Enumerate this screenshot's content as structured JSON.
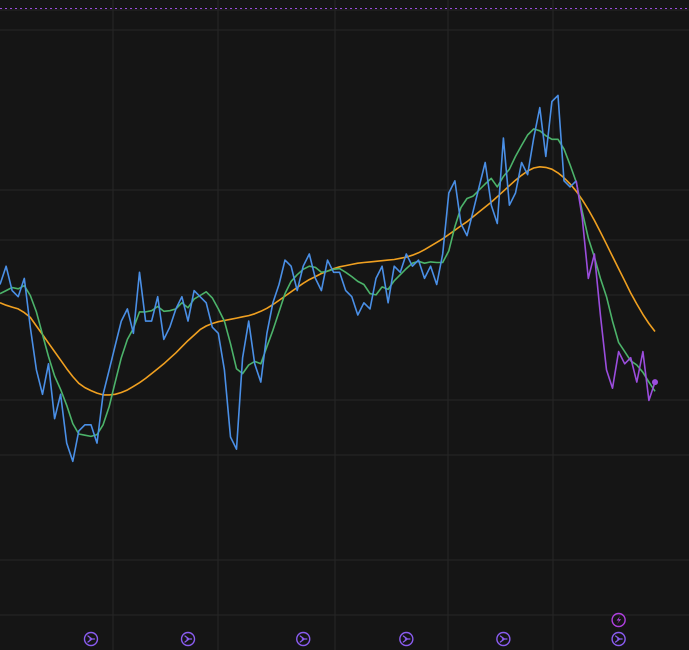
{
  "chart_data": {
    "type": "line",
    "grid": true,
    "legend": "none",
    "title": "",
    "xlabel": "",
    "ylabel": "",
    "xlim": [
      0,
      108
    ],
    "ylim": [
      0,
      100
    ],
    "colors": {
      "background": "#151515",
      "grid": "#262626",
      "price_blue": "#4a8fe6",
      "price_purple": "#9b4ddd",
      "fast_ma": "#4cb36a",
      "slow_ma": "#f0a020",
      "marker": "#8a5cf0",
      "marker_alert": "#b040e0"
    },
    "series": [
      {
        "role": "price",
        "x": [
          0,
          1,
          2,
          3,
          4,
          5,
          6,
          7,
          8,
          9,
          10,
          11,
          12,
          13,
          14,
          15,
          16,
          17,
          18,
          19,
          20,
          21,
          22,
          23,
          24,
          25,
          26,
          27,
          28,
          29,
          30,
          31,
          32,
          33,
          34,
          35,
          36,
          37,
          38,
          39,
          40,
          41,
          42,
          43,
          44,
          45,
          46,
          47,
          48,
          49,
          50,
          51,
          52,
          53,
          54,
          55,
          56,
          57,
          58,
          59,
          60,
          61,
          62,
          63,
          64,
          65,
          66,
          67,
          68,
          69,
          70,
          71,
          72,
          73,
          74,
          75,
          76,
          77,
          78,
          79,
          80,
          81,
          82,
          83,
          84,
          85,
          86,
          87,
          88,
          89,
          90,
          91,
          92,
          93,
          94,
          95,
          96,
          97,
          98,
          99,
          100,
          101,
          102,
          103,
          104,
          105,
          106,
          107,
          108
        ],
        "values": [
          55,
          58,
          54,
          53,
          56,
          48,
          41,
          37,
          42,
          33,
          37,
          29,
          26,
          31,
          32,
          32,
          29,
          37,
          41,
          45,
          49,
          51,
          47,
          57,
          49,
          49,
          53,
          46,
          48,
          51,
          53,
          49,
          54,
          53,
          52,
          48,
          47,
          41,
          30,
          28,
          43,
          49,
          42,
          39,
          47,
          52,
          55,
          59,
          58,
          54,
          58,
          60,
          56,
          54,
          59,
          57,
          57,
          54,
          53,
          50,
          52,
          51,
          56,
          58,
          52,
          58,
          57,
          60,
          58,
          59,
          56,
          58,
          55,
          60,
          70,
          72,
          65,
          63,
          67,
          71,
          75,
          68,
          65,
          79,
          68,
          70,
          75,
          73,
          79,
          84,
          76,
          85,
          86,
          72,
          71,
          72,
          66,
          56,
          60,
          50,
          41,
          38,
          44,
          42,
          43,
          39,
          44,
          36,
          39
        ],
        "segment_colors": [
          "price_blue",
          "price_purple"
        ]
      },
      {
        "role": "fast_ma",
        "x": [
          0,
          1,
          2,
          3,
          4,
          5,
          6,
          7,
          8,
          9,
          10,
          11,
          12,
          13,
          14,
          15,
          16,
          17,
          18,
          19,
          20,
          21,
          22,
          23,
          24,
          25,
          26,
          27,
          28,
          29,
          30,
          31,
          32,
          33,
          34,
          35,
          36,
          37,
          38,
          39,
          40,
          41,
          42,
          43,
          44,
          45,
          46,
          47,
          48,
          49,
          50,
          51,
          52,
          53,
          54,
          55,
          56,
          57,
          58,
          59,
          60,
          61,
          62,
          63,
          64,
          65,
          66,
          67,
          68,
          69,
          70,
          71,
          72,
          73,
          74,
          75,
          76,
          77,
          78,
          79,
          80,
          81,
          82,
          83,
          84,
          85,
          86,
          87,
          88,
          89,
          90,
          91,
          92,
          93,
          94,
          95,
          96,
          97,
          98,
          99,
          100,
          101,
          102,
          103,
          104,
          105,
          106,
          107,
          108
        ],
        "values": [
          53.5,
          54,
          54.5,
          54.3,
          54.8,
          53.2,
          50.5,
          46.8,
          43.2,
          40,
          37.8,
          35.2,
          32.2,
          30.5,
          30.3,
          30.1,
          30.4,
          32,
          35,
          39,
          43,
          46,
          47.8,
          50.5,
          50.5,
          50.7,
          51.4,
          50.6,
          50.7,
          51,
          52,
          51.2,
          52.6,
          53.2,
          53.8,
          52.8,
          51,
          49,
          45.3,
          41.2,
          40.4,
          41.8,
          42.4,
          42,
          44.8,
          47.5,
          50.5,
          53.5,
          55.5,
          56.6,
          57.5,
          58,
          57.8,
          57,
          57.2,
          57.5,
          57.6,
          57,
          56.3,
          55.5,
          55,
          53.5,
          53.3,
          54.6,
          54.2,
          55.6,
          56.6,
          57.6,
          58.5,
          58.8,
          58.5,
          58.7,
          58.6,
          58.6,
          60.5,
          64.5,
          67.6,
          69.1,
          69.5,
          70.5,
          71.5,
          72.4,
          71,
          72.7,
          73.9,
          76,
          77.8,
          79.5,
          80.5,
          80.2,
          79.4,
          78.8,
          78.8,
          77.2,
          74.6,
          71.8,
          67,
          62.6,
          59.5,
          56,
          53,
          49,
          45.5,
          44,
          42.5,
          41.8,
          40.6,
          39,
          37.5
        ],
        "color": "fast_ma"
      },
      {
        "role": "slow_ma",
        "x": [
          0,
          1,
          2,
          3,
          4,
          5,
          6,
          7,
          8,
          9,
          10,
          11,
          12,
          13,
          14,
          15,
          16,
          17,
          18,
          19,
          20,
          21,
          22,
          23,
          24,
          25,
          26,
          27,
          28,
          29,
          30,
          31,
          32,
          33,
          34,
          35,
          36,
          37,
          38,
          39,
          40,
          41,
          42,
          43,
          44,
          45,
          46,
          47,
          48,
          49,
          50,
          51,
          52,
          53,
          54,
          55,
          56,
          57,
          58,
          59,
          60,
          61,
          62,
          63,
          64,
          65,
          66,
          67,
          68,
          69,
          70,
          71,
          72,
          73,
          74,
          75,
          76,
          77,
          78,
          79,
          80,
          81,
          82,
          83,
          84,
          85,
          86,
          87,
          88,
          89,
          90,
          91,
          92,
          93,
          94,
          95,
          96,
          97,
          98,
          99,
          100,
          101,
          102,
          103,
          104,
          105,
          106,
          107,
          108
        ],
        "values": [
          52,
          51.6,
          51.3,
          51,
          50.4,
          49.6,
          48.2,
          46.8,
          45.4,
          44,
          42.6,
          41.2,
          39.9,
          38.8,
          38.1,
          37.6,
          37.2,
          36.9,
          36.9,
          37,
          37.3,
          37.7,
          38.3,
          38.9,
          39.6,
          40.4,
          41.2,
          42,
          42.9,
          43.8,
          44.8,
          45.8,
          46.7,
          47.6,
          48.2,
          48.6,
          48.9,
          49.1,
          49.3,
          49.5,
          49.7,
          49.9,
          50.2,
          50.6,
          51.1,
          51.7,
          52.4,
          53.1,
          53.8,
          54.5,
          55.2,
          55.8,
          56.3,
          56.8,
          57.2,
          57.6,
          57.9,
          58.1,
          58.3,
          58.5,
          58.6,
          58.7,
          58.8,
          58.9,
          59,
          59.1,
          59.3,
          59.5,
          59.8,
          60.2,
          60.7,
          61.3,
          61.9,
          62.5,
          63.2,
          63.9,
          64.6,
          65.3,
          66.1,
          66.9,
          67.7,
          68.5,
          69.4,
          70.3,
          71.2,
          72.1,
          72.9,
          73.6,
          74.1,
          74.3,
          74.2,
          73.9,
          73.3,
          72.5,
          71.5,
          70.3,
          68.9,
          67.3,
          65.5,
          63.6,
          61.6,
          59.6,
          57.6,
          55.6,
          53.6,
          51.8,
          50.1,
          48.6,
          47.3
        ],
        "color": "slow_ma"
      }
    ],
    "markers": [
      {
        "x": 15,
        "icon": "chevron-right-circle-icon",
        "color": "marker"
      },
      {
        "x": 31,
        "icon": "chevron-right-circle-icon",
        "color": "marker"
      },
      {
        "x": 50,
        "icon": "chevron-right-circle-icon",
        "color": "marker"
      },
      {
        "x": 67,
        "icon": "chevron-right-circle-icon",
        "color": "marker"
      },
      {
        "x": 83,
        "icon": "chevron-right-circle-icon",
        "color": "marker"
      },
      {
        "x": 102,
        "icon": "chevron-right-circle-icon",
        "color": "marker"
      },
      {
        "x": 102,
        "icon": "lightning-circle-icon",
        "color": "marker_alert"
      }
    ]
  }
}
